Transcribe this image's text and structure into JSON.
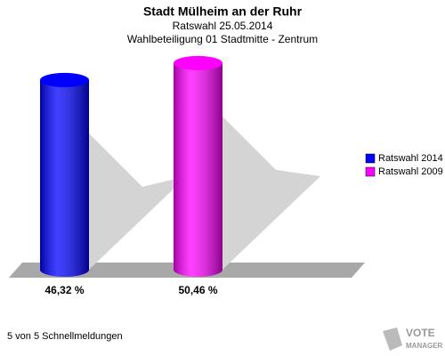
{
  "chart_data": {
    "type": "bar",
    "title": "Stadt Mülheim an der Ruhr",
    "subtitle": "Ratswahl 25.05.2014",
    "subtitle2": "Wahlbeteiligung 01 Stadtmitte - Zentrum",
    "series": [
      {
        "name": "Ratswahl 2014",
        "color": "#0000ff",
        "values": [
          46.32
        ],
        "value_labels": [
          "46,32 %"
        ]
      },
      {
        "name": "Ratswahl 2009",
        "color": "#ff00ff",
        "values": [
          50.46
        ],
        "value_labels": [
          "50,46 %"
        ]
      }
    ],
    "footer": "5 von 5 Schnellmeldungen",
    "logo": {
      "line1": "VOTE",
      "line2": "MANAGER"
    }
  }
}
